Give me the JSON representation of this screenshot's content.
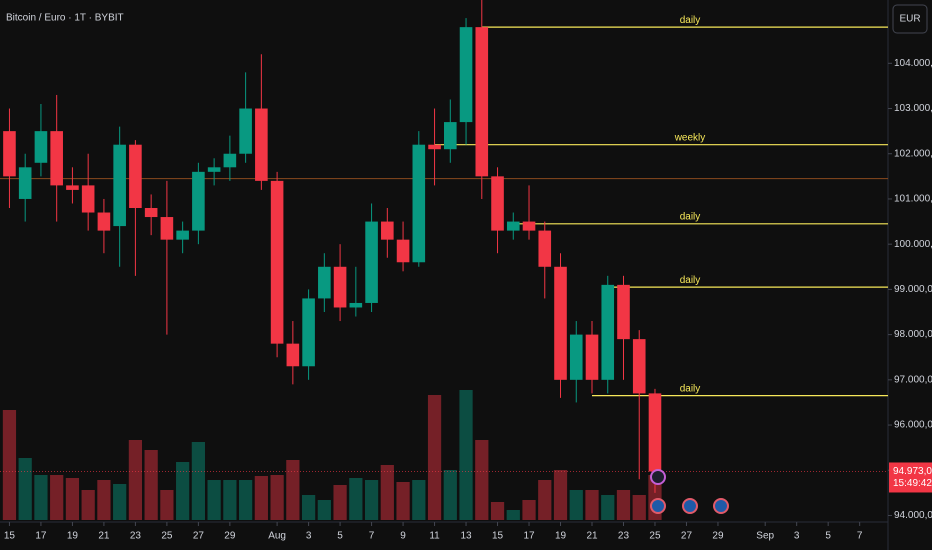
{
  "chart_data": {
    "type": "candlestick",
    "title": "Bitcoin / Euro · 1T · BYBIT",
    "currency": "EUR",
    "x": [
      0,
      1,
      2,
      3,
      4,
      5,
      6,
      7,
      8,
      9,
      10,
      11,
      12,
      13,
      14,
      15,
      16,
      17,
      18,
      19,
      20,
      21,
      22,
      23,
      24,
      25,
      26,
      27,
      28,
      29,
      30,
      31,
      32,
      33,
      34,
      35,
      36,
      37,
      38,
      39,
      40,
      41
    ],
    "open": [
      102500,
      101000,
      101800,
      102500,
      101300,
      101300,
      100700,
      100400,
      102200,
      100800,
      100600,
      100100,
      100300,
      101600,
      101700,
      102000,
      103000,
      101400,
      97800,
      97300,
      98800,
      99500,
      98600,
      98700,
      100500,
      100100,
      99600,
      102200,
      102100,
      102700,
      104800,
      101500,
      100300,
      100500,
      100300,
      99500,
      97000,
      98000,
      97000,
      99100,
      97900,
      96700
    ],
    "high": [
      103000,
      102000,
      103100,
      103300,
      101700,
      102000,
      101000,
      102600,
      102300,
      101100,
      101400,
      100500,
      101800,
      101900,
      102400,
      103800,
      104200,
      101600,
      98300,
      99000,
      99800,
      100000,
      99500,
      100900,
      100800,
      100500,
      102500,
      103000,
      103200,
      105000,
      105400,
      101700,
      100700,
      101300,
      100500,
      99800,
      98300,
      98300,
      99300,
      99300,
      98100,
      96800
    ],
    "low": [
      100800,
      100500,
      101500,
      100500,
      100900,
      100300,
      99800,
      99500,
      99300,
      100200,
      98000,
      99800,
      100000,
      101300,
      101400,
      101800,
      101200,
      97500,
      96900,
      97000,
      98500,
      98300,
      98400,
      98500,
      99700,
      99400,
      99500,
      101300,
      101800,
      102200,
      101000,
      99800,
      100100,
      100100,
      98800,
      96600,
      96500,
      96700,
      96700,
      97000,
      94800,
      94500
    ],
    "close": [
      101500,
      101700,
      102500,
      101300,
      101200,
      100700,
      100300,
      102200,
      100800,
      100600,
      100100,
      100300,
      101600,
      101700,
      102000,
      103000,
      101400,
      97800,
      97300,
      98800,
      99500,
      98600,
      98700,
      100500,
      100100,
      99600,
      102200,
      102100,
      102700,
      104800,
      101500,
      100300,
      100500,
      100300,
      99500,
      97000,
      98000,
      97000,
      99100,
      97900,
      96700,
      94973
    ],
    "volume": [
      110,
      62,
      45,
      45,
      42,
      30,
      40,
      36,
      80,
      70,
      30,
      58,
      78,
      40,
      40,
      40,
      44,
      45,
      60,
      25,
      20,
      35,
      42,
      40,
      55,
      38,
      40,
      125,
      50,
      130,
      80,
      18,
      10,
      20,
      40,
      50,
      30,
      30,
      25,
      30,
      25,
      45
    ],
    "up_color": "#089981",
    "down_color": "#f23645",
    "xlim": [
      -0.6,
      55.8
    ],
    "xticks": [
      {
        "value": 0,
        "label": "15"
      },
      {
        "value": 2,
        "label": "17"
      },
      {
        "value": 4,
        "label": "19"
      },
      {
        "value": 6,
        "label": "21"
      },
      {
        "value": 8,
        "label": "23"
      },
      {
        "value": 10,
        "label": "25"
      },
      {
        "value": 12,
        "label": "27"
      },
      {
        "value": 14,
        "label": "29"
      },
      {
        "value": 17,
        "label": "Aug"
      },
      {
        "value": 19,
        "label": "3"
      },
      {
        "value": 21,
        "label": "5"
      },
      {
        "value": 23,
        "label": "7"
      },
      {
        "value": 25,
        "label": "9"
      },
      {
        "value": 27,
        "label": "11"
      },
      {
        "value": 29,
        "label": "13"
      },
      {
        "value": 31,
        "label": "15"
      },
      {
        "value": 33,
        "label": "17"
      },
      {
        "value": 35,
        "label": "19"
      },
      {
        "value": 37,
        "label": "21"
      },
      {
        "value": 39,
        "label": "23"
      },
      {
        "value": 41,
        "label": "25"
      },
      {
        "value": 43,
        "label": "27"
      },
      {
        "value": 45,
        "label": "29"
      },
      {
        "value": 48,
        "label": "Sep"
      },
      {
        "value": 50,
        "label": "3"
      },
      {
        "value": 52,
        "label": "5"
      },
      {
        "value": 54,
        "label": "7"
      }
    ],
    "ylim": [
      93900,
      105400
    ],
    "yticks": [
      {
        "value": 94000,
        "label": "94.000,0"
      },
      {
        "value": 95000,
        "label": "95.000,0"
      },
      {
        "value": 96000,
        "label": "96.000,0"
      },
      {
        "value": 97000,
        "label": "97.000,0"
      },
      {
        "value": 98000,
        "label": "98.000,0"
      },
      {
        "value": 99000,
        "label": "99.000,0"
      },
      {
        "value": 100000,
        "label": "100.000,0"
      },
      {
        "value": 101000,
        "label": "101.000,0"
      },
      {
        "value": 102000,
        "label": "102.000,0"
      },
      {
        "value": 103000,
        "label": "103.000,0"
      },
      {
        "value": 104000,
        "label": "104.000,0"
      }
    ],
    "levels": [
      {
        "label": "daily",
        "value": 104800,
        "from": 30
      },
      {
        "label": "weekly",
        "value": 102200,
        "from": 27
      },
      {
        "label": "daily",
        "value": 100450,
        "from": 32
      },
      {
        "label": "daily",
        "value": 99050,
        "from": 38
      },
      {
        "label": "daily",
        "value": 96650,
        "from": 37
      }
    ],
    "level_color": "#f7e85a",
    "line": {
      "value": 101450,
      "color": "#8a4a1f"
    },
    "last": {
      "value": 94973,
      "label": "94.973,0",
      "countdown": "15:49:42"
    }
  }
}
